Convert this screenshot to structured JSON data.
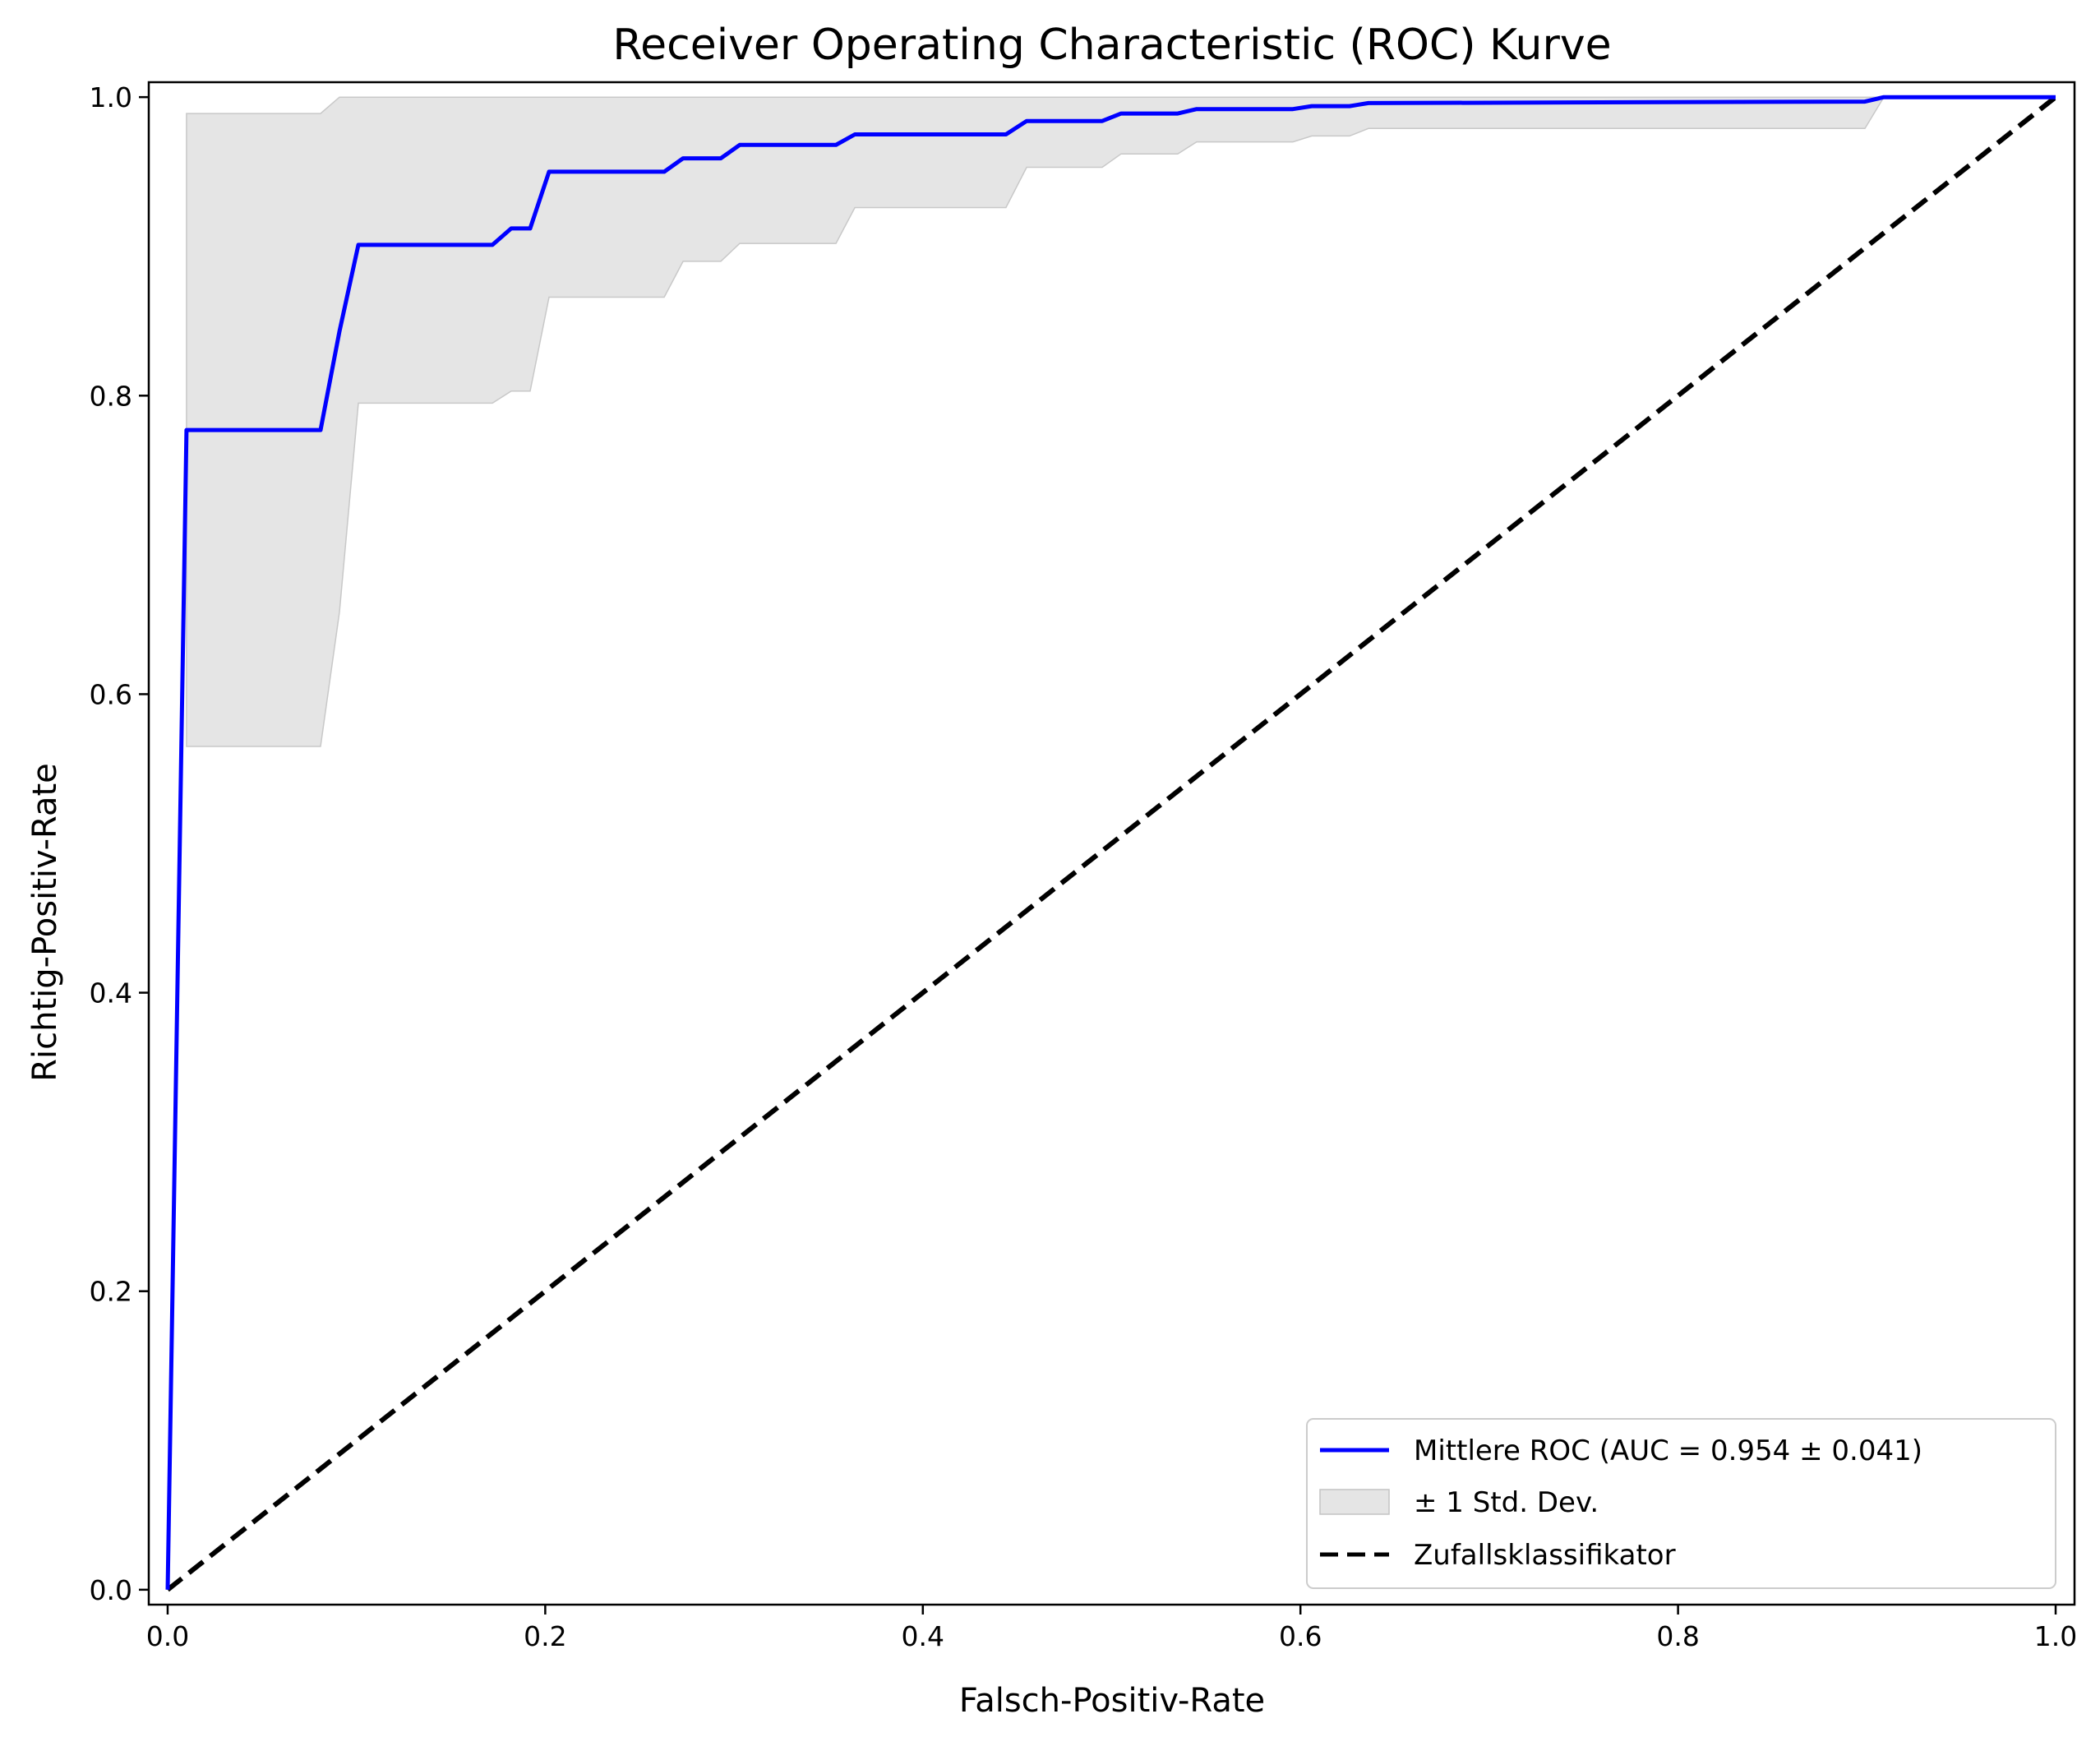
{
  "chart_data": {
    "type": "line",
    "title": "Receiver Operating Characteristic (ROC) Kurve",
    "xlabel": "Falsch-Positiv-Rate",
    "ylabel": "Richtig-Positiv-Rate",
    "xlim": [
      -0.01,
      1.01
    ],
    "ylim": [
      -0.01,
      1.01
    ],
    "xticks": [
      0.0,
      0.2,
      0.4,
      0.6,
      0.8,
      1.0
    ],
    "xtick_labels": [
      "0.0",
      "0.2",
      "0.4",
      "0.6",
      "0.8",
      "1.0"
    ],
    "yticks": [
      0.0,
      0.2,
      0.4,
      0.6,
      0.8,
      1.0
    ],
    "ytick_labels": [
      "0.0",
      "0.2",
      "0.4",
      "0.6",
      "0.8",
      "1.0"
    ],
    "grid": false,
    "legend_position": "bottom-right",
    "series": [
      {
        "name": "Mittlere ROC (AUC = 0.954 ± 0.041)",
        "kind": "line",
        "color": "#0000ff",
        "x": [
          0.0,
          0.01,
          0.081,
          0.091,
          0.101,
          0.172,
          0.182,
          0.192,
          0.202,
          0.263,
          0.273,
          0.293,
          0.303,
          0.354,
          0.364,
          0.444,
          0.455,
          0.495,
          0.505,
          0.535,
          0.545,
          0.596,
          0.606,
          0.626,
          0.636,
          0.899,
          0.909,
          1.0
        ],
        "y": [
          0.0,
          0.777,
          0.777,
          0.843,
          0.901,
          0.901,
          0.912,
          0.912,
          0.95,
          0.95,
          0.959,
          0.959,
          0.968,
          0.968,
          0.975,
          0.975,
          0.984,
          0.984,
          0.989,
          0.989,
          0.992,
          0.992,
          0.994,
          0.994,
          0.996,
          0.997,
          1.0,
          1.0
        ]
      },
      {
        "name": "± 1 Std. Dev.",
        "kind": "band",
        "color": "#d3d3d3",
        "x": [
          0.01,
          0.081,
          0.091,
          0.101,
          0.172,
          0.182,
          0.192,
          0.202,
          0.263,
          0.273,
          0.293,
          0.303,
          0.354,
          0.364,
          0.444,
          0.455,
          0.495,
          0.505,
          0.535,
          0.545,
          0.596,
          0.606,
          0.626,
          0.636,
          0.899,
          0.909,
          1.0
        ],
        "upper": [
          0.989,
          0.989,
          1.0,
          1.0,
          1.0,
          1.0,
          1.0,
          1.0,
          1.0,
          1.0,
          1.0,
          1.0,
          1.0,
          1.0,
          1.0,
          1.0,
          1.0,
          1.0,
          1.0,
          1.0,
          1.0,
          1.0,
          1.0,
          1.0,
          1.0,
          1.0,
          1.0
        ],
        "lower": [
          0.565,
          0.565,
          0.655,
          0.795,
          0.795,
          0.803,
          0.803,
          0.866,
          0.866,
          0.89,
          0.89,
          0.902,
          0.902,
          0.926,
          0.926,
          0.953,
          0.953,
          0.962,
          0.962,
          0.97,
          0.97,
          0.974,
          0.974,
          0.979,
          0.979,
          1.0,
          1.0
        ]
      },
      {
        "name": "Zufallsklassifikator",
        "kind": "dashed-line",
        "color": "#000000",
        "x": [
          0.0,
          1.0
        ],
        "y": [
          0.0,
          1.0
        ]
      }
    ]
  }
}
